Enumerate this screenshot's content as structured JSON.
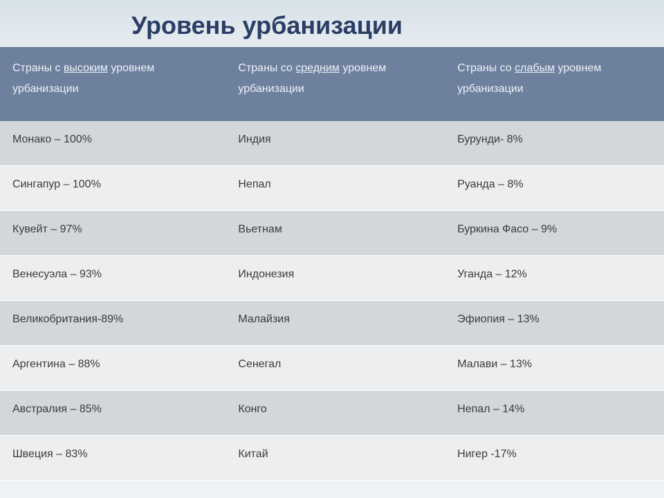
{
  "title": "Уровень урбанизации",
  "header": {
    "col1_pre": "Страны с ",
    "col1_u": "высоким",
    "col1_post": " уровнем урбанизации",
    "col2_pre": "Страны со ",
    "col2_u": "средним",
    "col2_post": " уровнем урбанизации",
    "col3_pre": "Страны со ",
    "col3_u": "слабым",
    "col3_post": " уровнем урбанизации"
  },
  "rows": [
    {
      "c1": "Монако – 100%",
      "c2": "Индия",
      "c3": "Бурунди- 8%"
    },
    {
      "c1": "Сингапур – 100%",
      "c2": "Непал",
      "c3": "Руанда – 8%"
    },
    {
      "c1": "Кувейт – 97%",
      "c2": "Вьетнам",
      "c3": "Буркина Фасо – 9%"
    },
    {
      "c1": "Венесуэла – 93%",
      "c2": "Индонезия",
      "c3": "Уганда – 12%"
    },
    {
      "c1": "Великобритания-89%",
      "c2": "Малайзия",
      "c3": "Эфиопия – 13%"
    },
    {
      "c1": "Аргентина – 88%",
      "c2": "Сенегал",
      "c3": "Малави – 13%"
    },
    {
      "c1": "Австралия – 85%",
      "c2": "Конго",
      "c3": "Непал – 14%"
    },
    {
      "c1": "Швеция – 83%",
      "c2": "Китай",
      "c3": "Нигер -17%"
    }
  ],
  "style": {
    "title_color": "#2a3d66",
    "title_fontsize": 36,
    "header_bg": "#6d809e",
    "header_fg": "#eef2f7",
    "row_odd_bg": "#d3d6da",
    "row_even_bg": "#eceef0",
    "cell_fontsize": 16,
    "cell_color": "#3b3b3b",
    "row_border": "#ffffff",
    "bg_gradient_top": "#d6e1e8",
    "bg_gradient_bottom": "#eef2f4",
    "columns": 3,
    "rows": 8
  }
}
